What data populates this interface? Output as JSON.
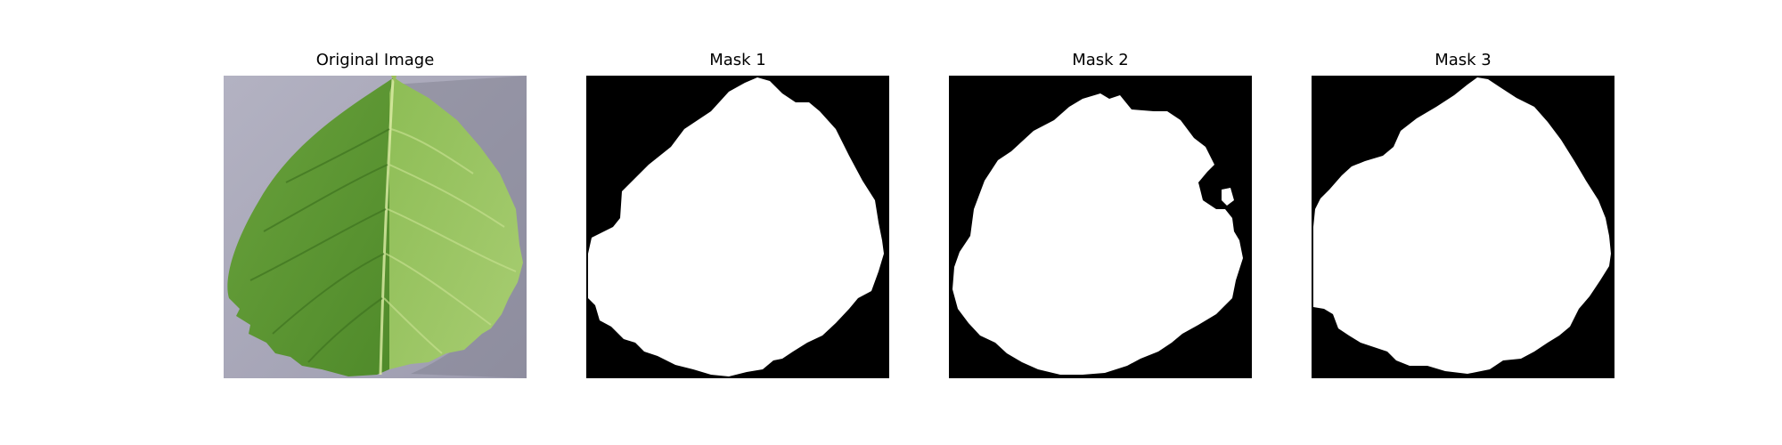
{
  "figure": {
    "panels": [
      {
        "title": "Original Image"
      },
      {
        "title": "Mask 1"
      },
      {
        "title": "Mask 2"
      },
      {
        "title": "Mask 3"
      }
    ]
  },
  "colors": {
    "background": "#ffffff",
    "mask_foreground": "#ffffff",
    "mask_background": "#000000",
    "leaf_light": "#9cc862",
    "leaf_dark": "#4f8a2a",
    "backdrop": "#a7a6b6"
  }
}
